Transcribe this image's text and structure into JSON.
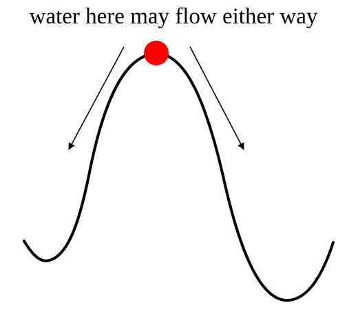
{
  "caption": "water here may flow either way",
  "colors": {
    "curve": "#000000",
    "arrow": "#000000",
    "point": "#ff0000",
    "background": "#ffffff"
  }
}
